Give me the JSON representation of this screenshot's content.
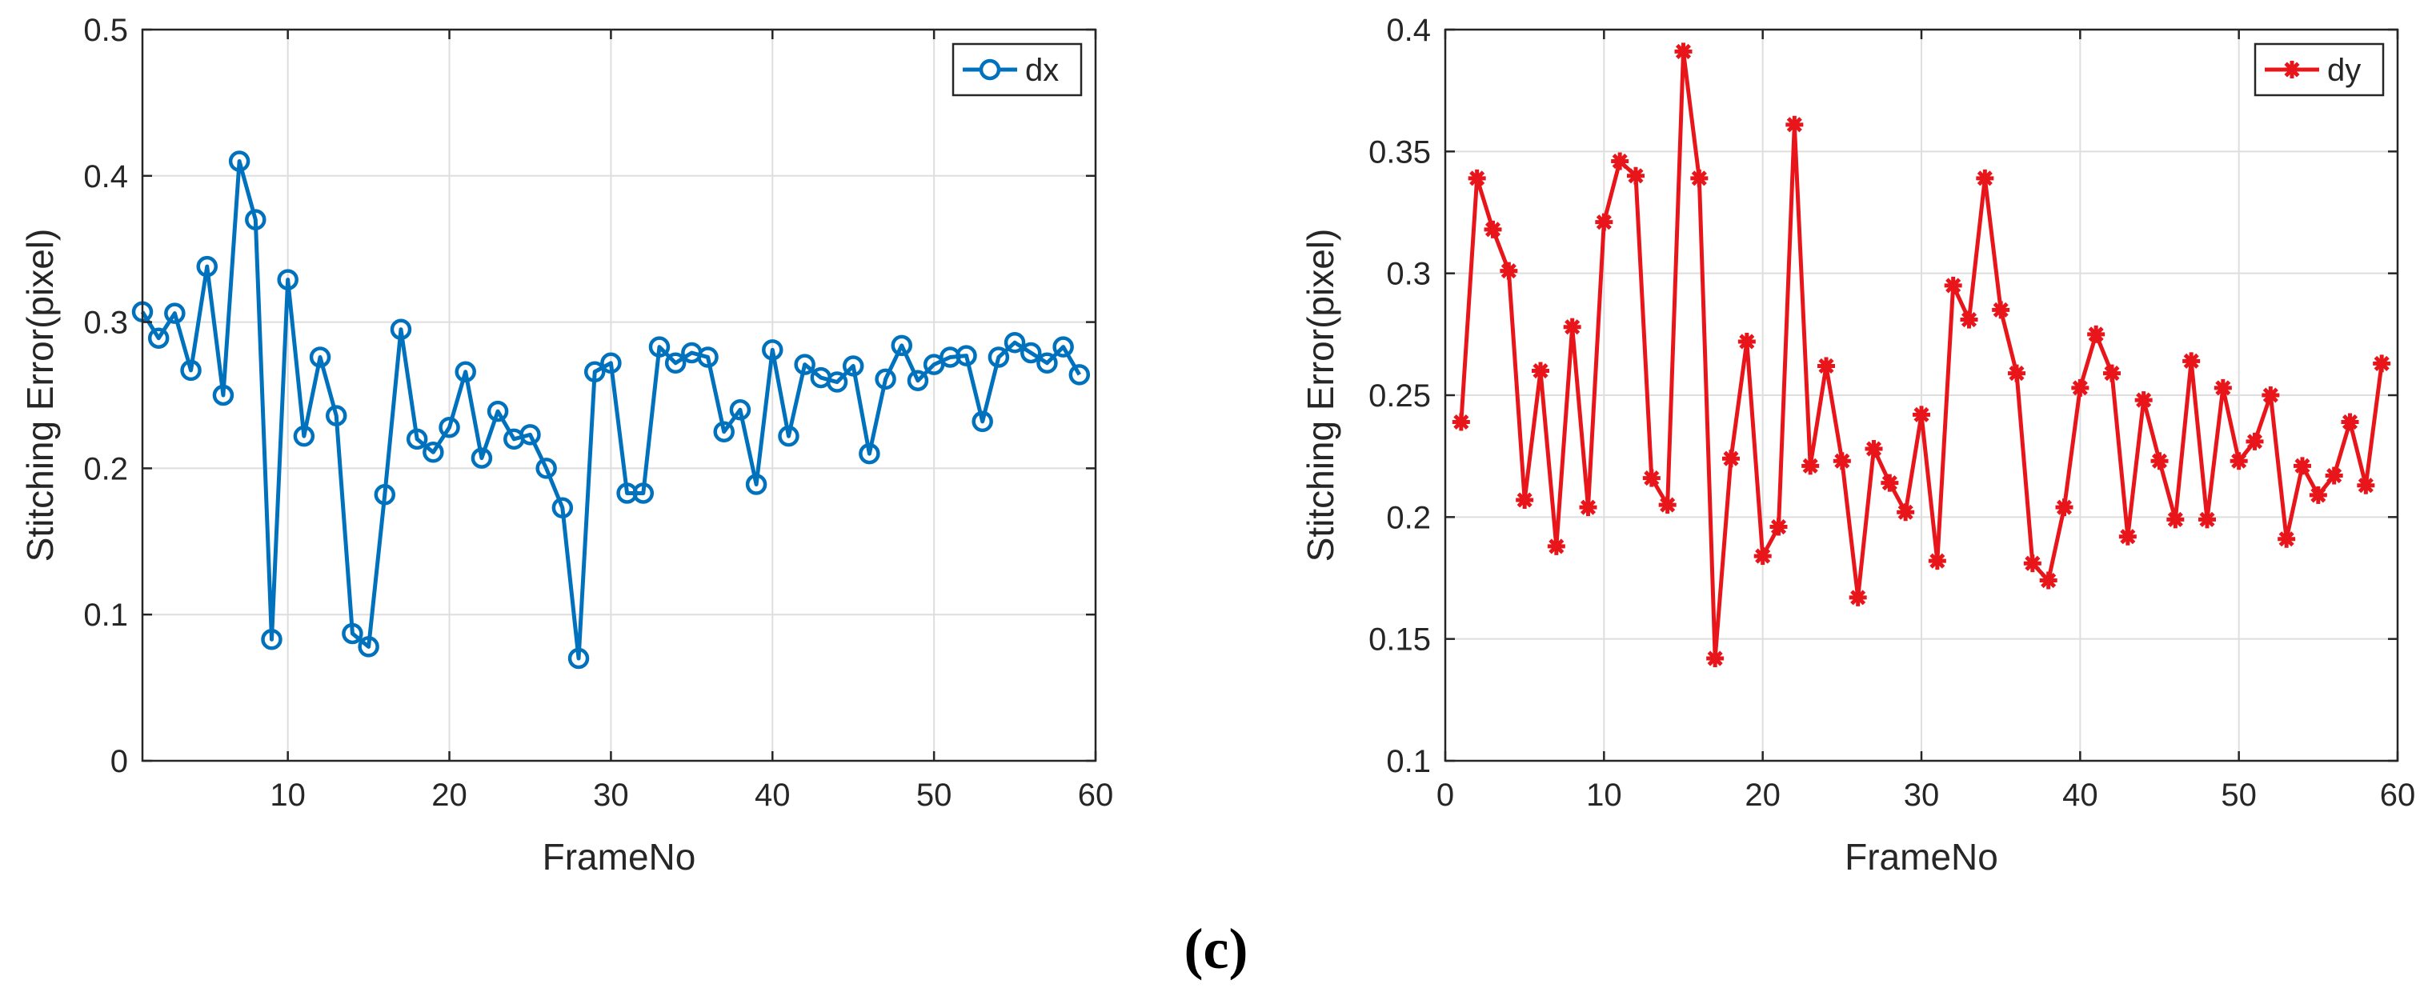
{
  "caption": "(c)",
  "colors": {
    "dx": "#0072BD",
    "dy": "#E8151B",
    "axis": "#262626",
    "grid": "#dedede"
  },
  "chart_data": [
    {
      "type": "line",
      "title": "",
      "xlabel": "FrameNo",
      "ylabel": "Stitching Error(pixel)",
      "xlim": [
        1,
        60
      ],
      "ylim": [
        0,
        0.5
      ],
      "xticks": [
        10,
        20,
        30,
        40,
        50,
        60
      ],
      "xtick_labels": [
        "10",
        "20",
        "30",
        "40",
        "50",
        "60"
      ],
      "yticks": [
        0,
        0.1,
        0.2,
        0.3,
        0.4,
        0.5
      ],
      "ytick_labels": [
        "0",
        "0.1",
        "0.2",
        "0.3",
        "0.4",
        "0.5"
      ],
      "grid": true,
      "legend_position": "top-right",
      "series": [
        {
          "name": "dx",
          "marker": "circle",
          "x": [
            1,
            2,
            3,
            4,
            5,
            6,
            7,
            8,
            9,
            10,
            11,
            12,
            13,
            14,
            15,
            16,
            17,
            18,
            19,
            20,
            21,
            22,
            23,
            24,
            25,
            26,
            27,
            28,
            29,
            30,
            31,
            32,
            33,
            34,
            35,
            36,
            37,
            38,
            39,
            40,
            41,
            42,
            43,
            44,
            45,
            46,
            47,
            48,
            49,
            50,
            51,
            52,
            53,
            54,
            55,
            56,
            57,
            58,
            59
          ],
          "values": [
            0.307,
            0.289,
            0.306,
            0.267,
            0.338,
            0.25,
            0.41,
            0.37,
            0.083,
            0.329,
            0.222,
            0.276,
            0.236,
            0.087,
            0.078,
            0.182,
            0.295,
            0.22,
            0.211,
            0.228,
            0.266,
            0.207,
            0.239,
            0.22,
            0.223,
            0.2,
            0.173,
            0.07,
            0.266,
            0.272,
            0.183,
            0.183,
            0.283,
            0.272,
            0.279,
            0.276,
            0.225,
            0.24,
            0.189,
            0.281,
            0.222,
            0.271,
            0.262,
            0.259,
            0.27,
            0.21,
            0.261,
            0.284,
            0.26,
            0.271,
            0.276,
            0.277,
            0.232,
            0.276,
            0.286,
            0.279,
            0.272,
            0.283,
            0.264
          ]
        }
      ]
    },
    {
      "type": "line",
      "title": "",
      "xlabel": "FrameNo",
      "ylabel": "Stitching Error(pixel)",
      "xlim": [
        0,
        60
      ],
      "ylim": [
        0.1,
        0.4
      ],
      "xticks": [
        0,
        10,
        20,
        30,
        40,
        50,
        60
      ],
      "xtick_labels": [
        "0",
        "10",
        "20",
        "30",
        "40",
        "50",
        "60"
      ],
      "yticks": [
        0.1,
        0.15,
        0.2,
        0.25,
        0.3,
        0.35,
        0.4
      ],
      "ytick_labels": [
        "0.1",
        "0.15",
        "0.2",
        "0.25",
        "0.3",
        "0.35",
        "0.4"
      ],
      "grid": true,
      "legend_position": "top-right",
      "series": [
        {
          "name": "dy",
          "marker": "asterisk",
          "x": [
            1,
            2,
            3,
            4,
            5,
            6,
            7,
            8,
            9,
            10,
            11,
            12,
            13,
            14,
            15,
            16,
            17,
            18,
            19,
            20,
            21,
            22,
            23,
            24,
            25,
            26,
            27,
            28,
            29,
            30,
            31,
            32,
            33,
            34,
            35,
            36,
            37,
            38,
            39,
            40,
            41,
            42,
            43,
            44,
            45,
            46,
            47,
            48,
            49,
            50,
            51,
            52,
            53,
            54,
            55,
            56,
            57,
            58,
            59
          ],
          "values": [
            0.239,
            0.339,
            0.318,
            0.301,
            0.207,
            0.26,
            0.188,
            0.278,
            0.204,
            0.321,
            0.346,
            0.34,
            0.216,
            0.205,
            0.391,
            0.339,
            0.142,
            0.224,
            0.272,
            0.184,
            0.196,
            0.361,
            0.221,
            0.262,
            0.223,
            0.167,
            0.228,
            0.214,
            0.202,
            0.242,
            0.182,
            0.295,
            0.281,
            0.339,
            0.285,
            0.259,
            0.181,
            0.174,
            0.204,
            0.253,
            0.275,
            0.259,
            0.192,
            0.248,
            0.223,
            0.199,
            0.264,
            0.199,
            0.253,
            0.223,
            0.231,
            0.25,
            0.191,
            0.221,
            0.209,
            0.217,
            0.239,
            0.213,
            0.263
          ]
        }
      ]
    }
  ]
}
